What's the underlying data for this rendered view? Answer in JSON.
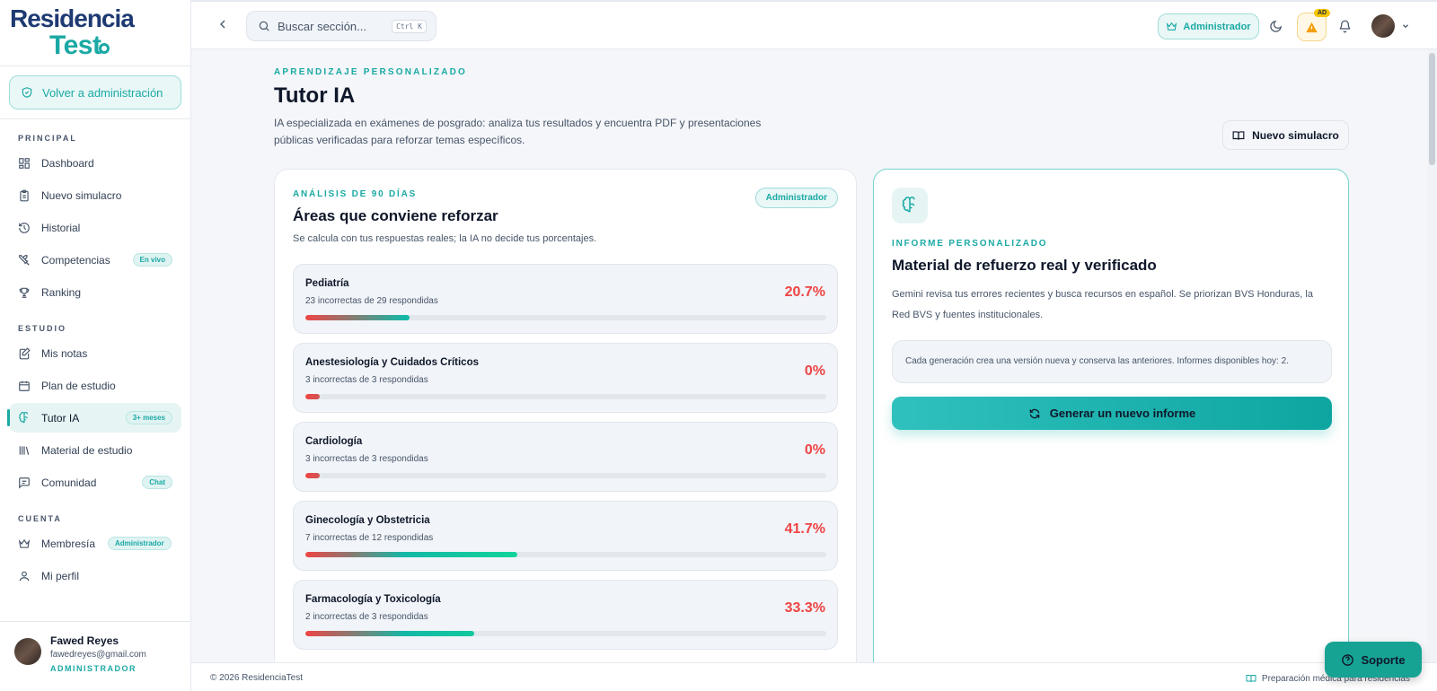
{
  "brand": {
    "line1": "Residencia",
    "line2": "Test"
  },
  "sidebar": {
    "back_label": "Volver a administración",
    "sections": [
      {
        "label": "PRINCIPAL",
        "items": [
          {
            "label": "Dashboard",
            "icon": "grid-icon"
          },
          {
            "label": "Nuevo simulacro",
            "icon": "clipboard-icon"
          },
          {
            "label": "Historial",
            "icon": "history-icon"
          },
          {
            "label": "Competencias",
            "icon": "swords-icon",
            "badge": "En vivo"
          },
          {
            "label": "Ranking",
            "icon": "trophy-icon"
          }
        ]
      },
      {
        "label": "ESTUDIO",
        "items": [
          {
            "label": "Mis notas",
            "icon": "notes-icon"
          },
          {
            "label": "Plan de estudio",
            "icon": "calendar-icon"
          },
          {
            "label": "Tutor IA",
            "icon": "brain-icon",
            "badge": "3+ meses",
            "active": true
          },
          {
            "label": "Material de estudio",
            "icon": "library-icon"
          },
          {
            "label": "Comunidad",
            "icon": "chat-icon",
            "badge": "Chat"
          }
        ]
      },
      {
        "label": "CUENTA",
        "items": [
          {
            "label": "Membresía",
            "icon": "crown-icon",
            "badge": "Administrador"
          },
          {
            "label": "Mi perfil",
            "icon": "user-icon"
          }
        ]
      }
    ],
    "user": {
      "name": "Fawed Reyes",
      "email": "fawedreyes@gmail.com",
      "role": "ADMINISTRADOR"
    }
  },
  "header": {
    "search_placeholder": "Buscar sección...",
    "search_shortcut": "Ctrl K",
    "admin_chip": "Administrador",
    "alert_badge": "AD"
  },
  "page": {
    "eyebrow": "APRENDIZAJE PERSONALIZADO",
    "title": "Tutor IA",
    "description": "IA especializada en exámenes de posgrado: analiza tus resultados y encuentra PDF y presentaciones públicas verificadas para reforzar temas específicos.",
    "new_sim_label": "Nuevo simulacro"
  },
  "analysis": {
    "eyebrow": "ANÁLISIS DE 90 DÍAS",
    "title": "Áreas que conviene reforzar",
    "subtitle": "Se calcula con tus respuestas reales; la IA no decide tus porcentajes.",
    "badge": "Administrador",
    "topics": [
      {
        "name": "Pediatría",
        "count": "23 incorrectas de 29 respondidas",
        "pct": "20.7%",
        "bar_fill": 0.2
      },
      {
        "name": "Anestesiología y Cuidados Críticos",
        "count": "3 incorrectas de 3 respondidas",
        "pct": "0%",
        "bar_fill": 0.028
      },
      {
        "name": "Cardiología",
        "count": "3 incorrectas de 3 respondidas",
        "pct": "0%",
        "bar_fill": 0.028
      },
      {
        "name": "Ginecología y Obstetricia",
        "count": "7 incorrectas de 12 respondidas",
        "pct": "41.7%",
        "bar_fill": 0.407
      },
      {
        "name": "Farmacología y Toxicología",
        "count": "2 incorrectas de 3 respondidas",
        "pct": "33.3%",
        "bar_fill": 0.324
      }
    ]
  },
  "report": {
    "eyebrow": "INFORME PERSONALIZADO",
    "title": "Material de refuerzo real y verificado",
    "description": "Gemini revisa tus errores recientes y busca recursos en español. Se priorizan BVS Honduras, la Red BVS y fuentes institucionales.",
    "note": "Cada generación crea una versión nueva y conserva las anteriores. Informes disponibles hoy: 2.",
    "button_label": "Generar un nuevo informe"
  },
  "footer": {
    "copyright": "© 2026 ResidenciaTest",
    "tagline": "Preparación médica para residencias"
  },
  "support_label": "Soporte",
  "colors": {
    "accent": "#1aa9a4",
    "danger": "#ef4444",
    "navy": "#1e3a73"
  }
}
